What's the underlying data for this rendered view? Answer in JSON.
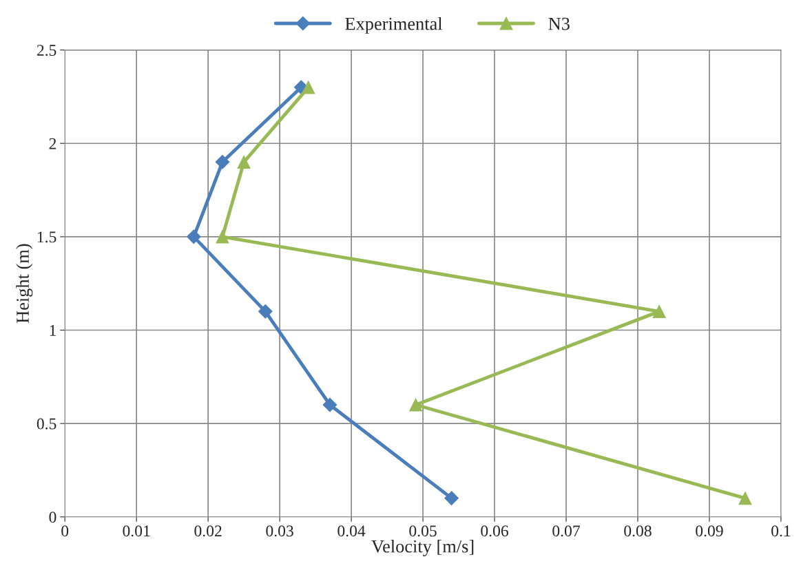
{
  "chart_data": {
    "type": "line",
    "xlabel": "Velocity [m/s]",
    "ylabel": "Height (m)",
    "series": [
      {
        "name": "Experimental",
        "color": "#4a7ebb",
        "marker": "diamond",
        "x": [
          0.033,
          0.022,
          0.018,
          0.028,
          0.037,
          0.054
        ],
        "values": [
          2.3,
          1.9,
          1.5,
          1.1,
          0.6,
          0.1
        ]
      },
      {
        "name": "N3",
        "color": "#98b954",
        "marker": "triangle",
        "x": [
          0.034,
          0.025,
          0.022,
          0.083,
          0.049,
          0.095
        ],
        "values": [
          2.3,
          1.9,
          1.5,
          1.1,
          0.6,
          0.1
        ]
      }
    ],
    "xlim": [
      0,
      0.1
    ],
    "xticks": [
      0,
      0.01,
      0.02,
      0.03,
      0.04,
      0.05,
      0.06,
      0.07,
      0.08,
      0.09,
      0.1
    ],
    "ylim": [
      0,
      2.5
    ],
    "yticks": [
      0,
      0.5,
      1,
      1.5,
      2,
      2.5
    ],
    "grid": true,
    "legend": "top",
    "line_style": "solid"
  }
}
